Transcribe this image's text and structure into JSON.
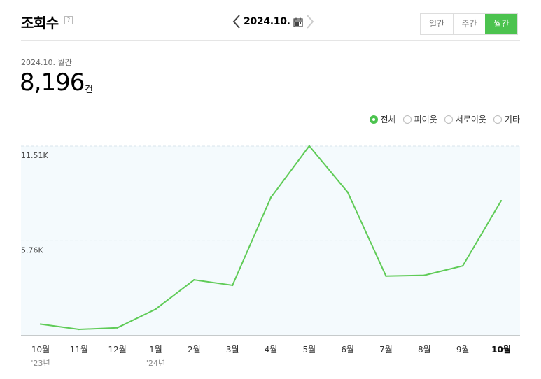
{
  "header": {
    "title": "조회수",
    "help": "?",
    "date": "2024.10.",
    "period_tabs": [
      {
        "label": "일간",
        "active": false
      },
      {
        "label": "주간",
        "active": false
      },
      {
        "label": "월간",
        "active": true
      }
    ]
  },
  "summary": {
    "period_label": "2024.10. 월간",
    "value": "8,196",
    "unit": "건"
  },
  "legend": [
    {
      "label": "전체",
      "selected": true
    },
    {
      "label": "피이웃",
      "selected": false
    },
    {
      "label": "서로이웃",
      "selected": false
    },
    {
      "label": "기타",
      "selected": false
    }
  ],
  "colors": {
    "accent": "#4cc34f",
    "line": "#5fcb57",
    "plot_bg": "#f4fafd"
  },
  "chart_data": {
    "type": "line",
    "categories": [
      "10월",
      "11월",
      "12월",
      "1월",
      "2월",
      "3월",
      "4월",
      "5월",
      "6월",
      "7월",
      "8월",
      "9월",
      "10월"
    ],
    "year_labels": [
      "'23년",
      "",
      "",
      "'24년",
      "",
      "",
      "",
      "",
      "",
      "",
      "",
      "",
      ""
    ],
    "series": [
      {
        "name": "전체",
        "values": [
          700,
          380,
          480,
          1610,
          3390,
          3060,
          8390,
          11520,
          8720,
          3620,
          3670,
          4240,
          8190
        ]
      }
    ],
    "yticks": [
      "5.76K",
      "11.51K"
    ],
    "ytick_values": [
      5760,
      11510
    ],
    "ylim": [
      0,
      11510
    ],
    "grid": true,
    "highlight_last_category": true
  }
}
